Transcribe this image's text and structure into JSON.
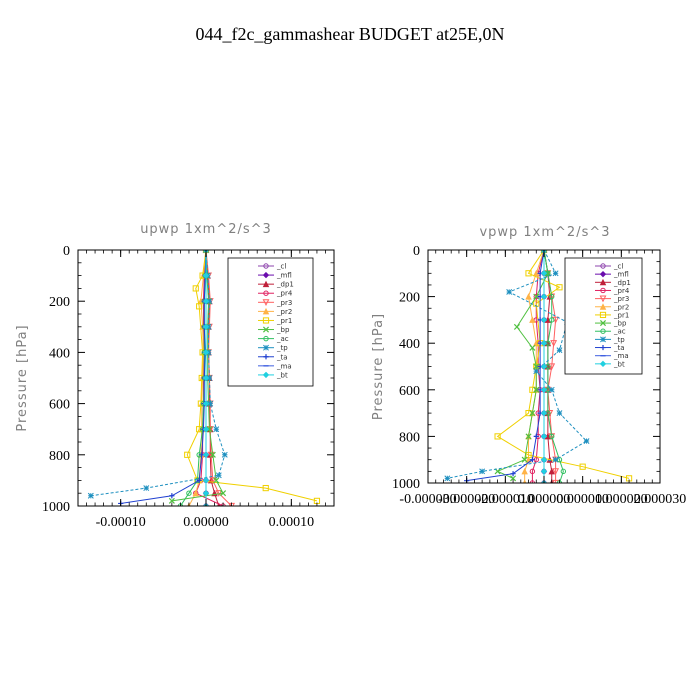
{
  "figure": {
    "title": "044_f2c_gammashear  BUDGET at25E,0N"
  },
  "chart_data": [
    {
      "type": "line",
      "title": "upwp   1xm^2/s^3",
      "ylabel": "Pressure [hPa]",
      "xlabel": "",
      "xlim": [
        -0.00015,
        0.00015
      ],
      "ylim": [
        1000,
        0
      ],
      "xticks": [
        "-0.00010",
        "0.00000",
        "0.00010"
      ],
      "xtick_values": [
        -0.0001,
        0,
        0.0001
      ],
      "yticks": [
        "0",
        "200",
        "400",
        "600",
        "800",
        "1000"
      ],
      "ytick_values": [
        0,
        200,
        400,
        600,
        800,
        1000
      ],
      "legend_placement": "top-right",
      "series": [
        {
          "name": "_cl",
          "color": "#8e44ad",
          "marker": "circle",
          "x": [
            0,
            0,
            0,
            0,
            0,
            0,
            0,
            0,
            0,
            0,
            0,
            0
          ],
          "y": [
            0,
            100,
            200,
            300,
            400,
            500,
            600,
            700,
            800,
            900,
            950,
            1000
          ]
        },
        {
          "name": "_mfl",
          "color": "#6a0dad",
          "marker": "diamond",
          "x": [
            0,
            0,
            0,
            0,
            0,
            0,
            0,
            0,
            0,
            0,
            0,
            0
          ],
          "y": [
            0,
            100,
            200,
            300,
            400,
            500,
            600,
            700,
            800,
            900,
            950,
            1000
          ]
        },
        {
          "name": "_dp1",
          "color": "#c0203a",
          "marker": "triangle",
          "x": [
            0,
            2e-06,
            4e-06,
            3e-06,
            3e-06,
            4e-06,
            4e-06,
            5e-06,
            5e-06,
            6e-06,
            1e-05,
            1.5e-05
          ],
          "y": [
            0,
            100,
            200,
            300,
            400,
            500,
            600,
            700,
            800,
            900,
            950,
            1000
          ]
        },
        {
          "name": "_pr4",
          "color": "#e02060",
          "marker": "circle",
          "x": [
            0,
            -2e-06,
            -3e-06,
            -3e-06,
            -2e-06,
            -3e-06,
            -3e-06,
            -4e-06,
            -4e-06,
            -6e-06,
            -1.2e-05,
            2e-05
          ],
          "y": [
            0,
            100,
            200,
            300,
            400,
            500,
            600,
            700,
            800,
            900,
            950,
            1000
          ]
        },
        {
          "name": "_pr3",
          "color": "#ff6060",
          "marker": "triangle-down",
          "x": [
            0,
            3e-06,
            5e-06,
            4e-06,
            3e-06,
            4e-06,
            5e-06,
            5e-06,
            6e-06,
            8e-06,
            1.5e-05,
            3e-05
          ],
          "y": [
            0,
            100,
            200,
            300,
            400,
            500,
            600,
            700,
            800,
            900,
            950,
            1000
          ]
        },
        {
          "name": "_pr2",
          "color": "#ffb347",
          "marker": "triangle",
          "x": [
            0,
            -3e-06,
            -6e-06,
            -4e-06,
            -3e-06,
            -4e-06,
            -5e-06,
            -5e-06,
            -6e-06,
            -8e-06,
            -1.2e-05,
            -2e-05
          ],
          "y": [
            0,
            100,
            200,
            300,
            400,
            500,
            600,
            700,
            800,
            900,
            950,
            1000
          ]
        },
        {
          "name": "_pr1",
          "color": "#f0d000",
          "marker": "square",
          "x": [
            0,
            -4e-06,
            -1.2e-05,
            -8e-06,
            -4e-06,
            -5e-06,
            -6e-06,
            -8e-06,
            -2.2e-05,
            -1e-05,
            7e-05,
            0.00013
          ],
          "y": [
            0,
            100,
            150,
            220,
            400,
            500,
            600,
            700,
            800,
            900,
            930,
            980
          ]
        },
        {
          "name": "_bp",
          "color": "#50c040",
          "marker": "x",
          "x": [
            0,
            1e-06,
            3e-06,
            2e-06,
            2e-06,
            2e-06,
            3e-06,
            4e-06,
            8e-06,
            1.2e-05,
            2e-05,
            -4e-05
          ],
          "y": [
            0,
            100,
            200,
            300,
            400,
            500,
            600,
            700,
            800,
            900,
            950,
            980
          ]
        },
        {
          "name": "_ac",
          "color": "#30c060",
          "marker": "circle",
          "x": [
            0,
            -1e-06,
            -2e-06,
            -2e-06,
            -2e-06,
            -2e-06,
            -3e-06,
            -4e-06,
            -8e-06,
            -1e-05,
            -2e-05,
            -3e-05
          ],
          "y": [
            0,
            100,
            200,
            300,
            400,
            500,
            600,
            700,
            800,
            900,
            950,
            1000
          ]
        },
        {
          "name": "_tp",
          "color": "#1e90c0",
          "marker": "star",
          "x": [
            0,
            2e-06,
            4e-06,
            3e-06,
            3e-06,
            4e-06,
            5e-06,
            1.2e-05,
            2.2e-05,
            1.5e-05,
            -7e-05,
            -0.000135
          ],
          "y": [
            0,
            100,
            200,
            300,
            400,
            500,
            600,
            700,
            800,
            880,
            930,
            960
          ]
        },
        {
          "name": "_ta",
          "color": "#2040d0",
          "marker": "plus",
          "x": [
            0,
            -1e-06,
            -2e-06,
            -2e-06,
            -1e-06,
            -2e-06,
            -2e-06,
            -3e-06,
            -5e-06,
            -8e-06,
            -4e-05,
            -0.0001
          ],
          "y": [
            0,
            100,
            200,
            300,
            400,
            500,
            600,
            700,
            800,
            900,
            960,
            990
          ]
        },
        {
          "name": "_ma",
          "color": "#4060e0",
          "marker": "dash",
          "x": [
            0,
            0,
            0,
            0,
            0,
            0,
            0,
            0,
            0,
            0,
            0,
            0
          ],
          "y": [
            0,
            100,
            200,
            300,
            400,
            500,
            600,
            700,
            800,
            900,
            950,
            1000
          ]
        },
        {
          "name": "_bt",
          "color": "#20d0e0",
          "marker": "diamond",
          "x": [
            0,
            0,
            0,
            0,
            0,
            0,
            0,
            0,
            0,
            0,
            0,
            0
          ],
          "y": [
            0,
            100,
            200,
            300,
            400,
            500,
            600,
            700,
            800,
            900,
            950,
            1000
          ]
        }
      ]
    },
    {
      "type": "line",
      "title": "vpwp   1xm^2/s^3",
      "ylabel": "Pressure [hPa]",
      "xlabel": "",
      "xlim": [
        -3e-05,
        3e-05
      ],
      "ylim": [
        1000,
        0
      ],
      "xticks": [
        "-0.000030",
        "-0.000020",
        "-0.000010",
        "0.000000",
        "0.000010",
        "0.000020",
        "0.000030"
      ],
      "xtick_values": [
        -3e-05,
        -2e-05,
        -1e-05,
        0,
        1e-05,
        2e-05,
        3e-05
      ],
      "yticks": [
        "0",
        "200",
        "400",
        "600",
        "800",
        "1000"
      ],
      "ytick_values": [
        0,
        200,
        400,
        600,
        800,
        1000
      ],
      "legend_placement": "top-right",
      "series": [
        {
          "name": "_cl",
          "color": "#8e44ad",
          "marker": "circle",
          "x": [
            0,
            0,
            0,
            0,
            0,
            0,
            0,
            0,
            0,
            0,
            0,
            0
          ],
          "y": [
            0,
            100,
            200,
            300,
            400,
            500,
            600,
            700,
            800,
            900,
            950,
            1000
          ]
        },
        {
          "name": "_mfl",
          "color": "#6a0dad",
          "marker": "diamond",
          "x": [
            0,
            0,
            0,
            0,
            0,
            0,
            0,
            0,
            0,
            0,
            0,
            0
          ],
          "y": [
            0,
            100,
            200,
            300,
            400,
            500,
            600,
            700,
            800,
            900,
            950,
            1000
          ]
        },
        {
          "name": "_dp1",
          "color": "#c0203a",
          "marker": "triangle",
          "x": [
            0,
            1e-06,
            1.5e-06,
            1e-06,
            1e-06,
            1e-06,
            1e-06,
            1e-06,
            1e-06,
            1.5e-06,
            2e-06,
            2e-06
          ],
          "y": [
            0,
            100,
            200,
            300,
            400,
            500,
            600,
            700,
            800,
            900,
            950,
            1000
          ]
        },
        {
          "name": "_pr4",
          "color": "#e02060",
          "marker": "circle",
          "x": [
            0,
            -1.5e-06,
            -2e-06,
            -2e-06,
            -1.5e-06,
            -1.5e-06,
            -1e-06,
            -1.5e-06,
            -1.5e-06,
            -2e-06,
            -3e-06,
            -3e-06
          ],
          "y": [
            0,
            100,
            200,
            300,
            400,
            500,
            600,
            700,
            800,
            900,
            950,
            1000
          ]
        },
        {
          "name": "_pr3",
          "color": "#ff6060",
          "marker": "triangle-down",
          "x": [
            0,
            1e-06,
            2e-06,
            3e-06,
            2.5e-06,
            2e-06,
            1e-06,
            1.5e-06,
            2e-06,
            3e-06,
            3e-06,
            3e-06
          ],
          "y": [
            0,
            100,
            200,
            300,
            400,
            500,
            600,
            700,
            800,
            900,
            950,
            1000
          ]
        },
        {
          "name": "_pr2",
          "color": "#ffb347",
          "marker": "triangle",
          "x": [
            0,
            -2e-06,
            -4e-06,
            -3e-06,
            -2e-06,
            -2e-06,
            -2e-06,
            -3e-06,
            -4e-06,
            -4e-06,
            -5e-06,
            -5e-06
          ],
          "y": [
            0,
            100,
            200,
            300,
            400,
            500,
            600,
            700,
            800,
            900,
            950,
            1000
          ]
        },
        {
          "name": "_pr1",
          "color": "#f0d000",
          "marker": "square",
          "x": [
            0,
            -4e-06,
            4e-06,
            -2e-06,
            -1e-06,
            -2e-06,
            -3e-06,
            -4e-06,
            -1.2e-05,
            -4e-06,
            1e-05,
            2.2e-05
          ],
          "y": [
            0,
            100,
            160,
            230,
            400,
            500,
            600,
            700,
            800,
            880,
            930,
            980
          ]
        },
        {
          "name": "_bp",
          "color": "#50c040",
          "marker": "x",
          "x": [
            0,
            1e-06,
            -2e-06,
            -7e-06,
            -3e-06,
            -2e-06,
            -2e-06,
            -3e-06,
            -4e-06,
            -5e-06,
            -1.2e-05,
            -8e-06
          ],
          "y": [
            0,
            100,
            200,
            330,
            420,
            500,
            600,
            700,
            800,
            900,
            950,
            980
          ]
        },
        {
          "name": "_ac",
          "color": "#30c060",
          "marker": "circle",
          "x": [
            0,
            1e-06,
            2e-06,
            2e-06,
            1e-06,
            1e-06,
            1e-06,
            1e-06,
            2e-06,
            4e-06,
            5e-06,
            4e-06
          ],
          "y": [
            0,
            100,
            200,
            300,
            400,
            500,
            600,
            700,
            800,
            900,
            950,
            1000
          ]
        },
        {
          "name": "_tp",
          "color": "#1e90c0",
          "marker": "star",
          "x": [
            0,
            3e-06,
            -9e-06,
            6e-06,
            4e-06,
            -2e-06,
            2e-06,
            4e-06,
            1.1e-05,
            3e-06,
            -1.6e-05,
            -2.5e-05
          ],
          "y": [
            0,
            100,
            180,
            310,
            430,
            520,
            600,
            700,
            820,
            900,
            950,
            980
          ]
        },
        {
          "name": "_ta",
          "color": "#2040d0",
          "marker": "plus",
          "x": [
            0,
            -1e-06,
            -1e-06,
            -1e-06,
            -1e-06,
            -1e-06,
            -1e-06,
            -1e-06,
            -2e-06,
            -3e-06,
            -8e-06,
            -2e-05
          ],
          "y": [
            0,
            100,
            200,
            300,
            400,
            500,
            600,
            700,
            800,
            900,
            960,
            990
          ]
        },
        {
          "name": "_ma",
          "color": "#4060e0",
          "marker": "dash",
          "x": [
            0,
            0,
            0,
            0,
            0,
            0,
            0,
            0,
            0,
            0,
            0,
            0
          ],
          "y": [
            0,
            100,
            200,
            300,
            400,
            500,
            600,
            700,
            800,
            900,
            950,
            1000
          ]
        },
        {
          "name": "_bt",
          "color": "#20d0e0",
          "marker": "diamond",
          "x": [
            0,
            0,
            0,
            0,
            0,
            0,
            0,
            0,
            0,
            0,
            0,
            0
          ],
          "y": [
            0,
            100,
            200,
            300,
            400,
            500,
            600,
            700,
            800,
            900,
            950,
            1000
          ]
        }
      ]
    }
  ]
}
